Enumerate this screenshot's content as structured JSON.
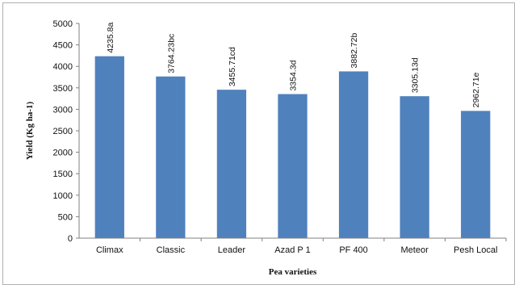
{
  "chart_data": {
    "type": "bar",
    "title": "",
    "xlabel": "Pea varieties",
    "ylabel": "Yield (Kg ha-1)",
    "ylim": [
      0,
      5000
    ],
    "yticks": [
      0,
      500,
      1000,
      1500,
      2000,
      2500,
      3000,
      3500,
      4000,
      4500,
      5000
    ],
    "grid": false,
    "legend": "none",
    "categories": [
      "Climax",
      "Classic",
      "Leader",
      "Azad P 1",
      "PF 400",
      "Meteor",
      "Pesh Local"
    ],
    "values": [
      4235.8,
      3764.23,
      3455.71,
      3354.3,
      3882.72,
      3305.13,
      2962.71
    ],
    "data_labels": [
      "4235.8a",
      "3764.23bc",
      "3455.71cd",
      "3354.3d",
      "3882.72b",
      "3305.13d",
      "2962.71e"
    ],
    "bar_color": "#4f81bd"
  }
}
